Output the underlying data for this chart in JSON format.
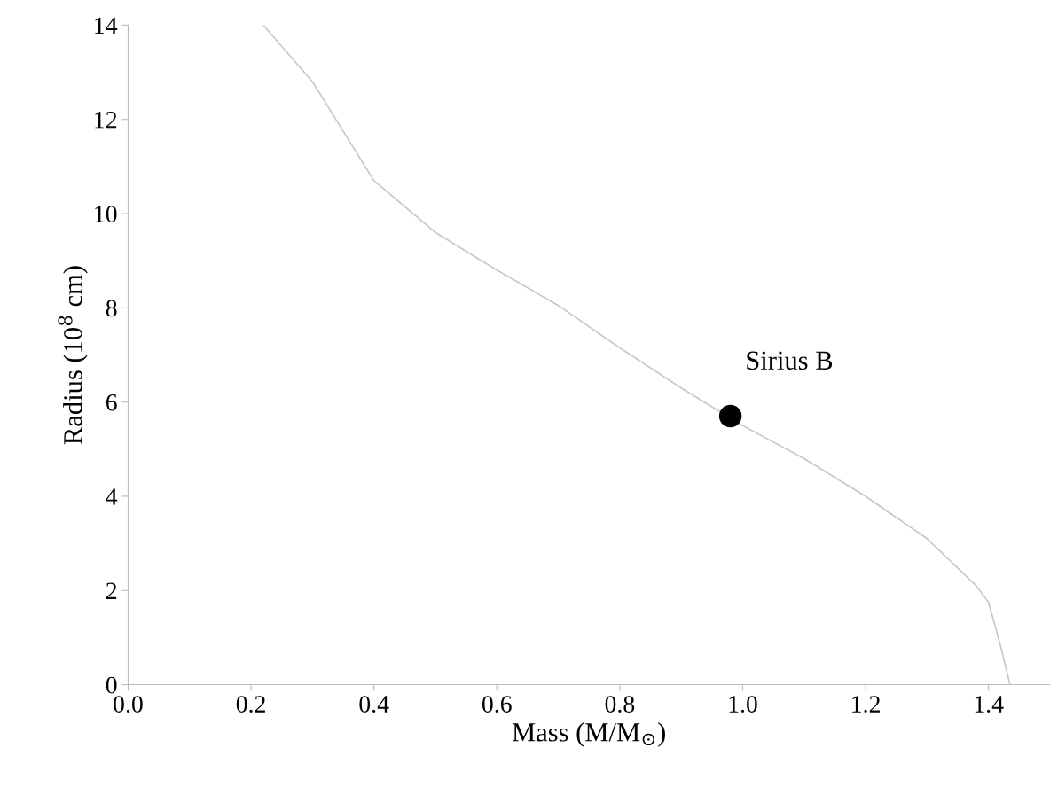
{
  "chart_data": {
    "type": "line",
    "xlabel": "Mass (M/M$_{⊙}$)",
    "ylabel": "Radius (10$^{8}$ cm)",
    "xlim": [
      0,
      1.5
    ],
    "ylim": [
      0,
      14
    ],
    "xticks": [
      {
        "value": 0,
        "label": "0.0"
      },
      0.2,
      0.4,
      0.6,
      0.8,
      {
        "value": 1,
        "label": "1.0"
      },
      1.2,
      1.4
    ],
    "yticks": [
      0,
      2,
      4,
      6,
      8,
      10,
      12,
      14
    ],
    "grid": false,
    "legend": false,
    "series": [
      {
        "color": "#c8c8c8",
        "x": [
          0.22,
          0.3,
          0.4,
          0.5,
          0.6,
          0.7,
          0.8,
          0.9,
          1.0,
          1.1,
          1.2,
          1.3,
          1.38,
          1.4,
          1.42,
          1.435
        ],
        "values": [
          14,
          12.8,
          10.7,
          9.6,
          8.8,
          8.05,
          7.15,
          6.3,
          5.5,
          4.8,
          4.0,
          3.1,
          2.1,
          1.75,
          0.8,
          0
        ]
      },
      {
        "type": "scatter",
        "color": "#000000",
        "marker": "circle",
        "x": [
          0.98
        ],
        "values": [
          5.7
        ]
      }
    ],
    "annotations": [
      {
        "text": "Sirius B",
        "x": 0.98,
        "y": 5.7
      }
    ]
  }
}
